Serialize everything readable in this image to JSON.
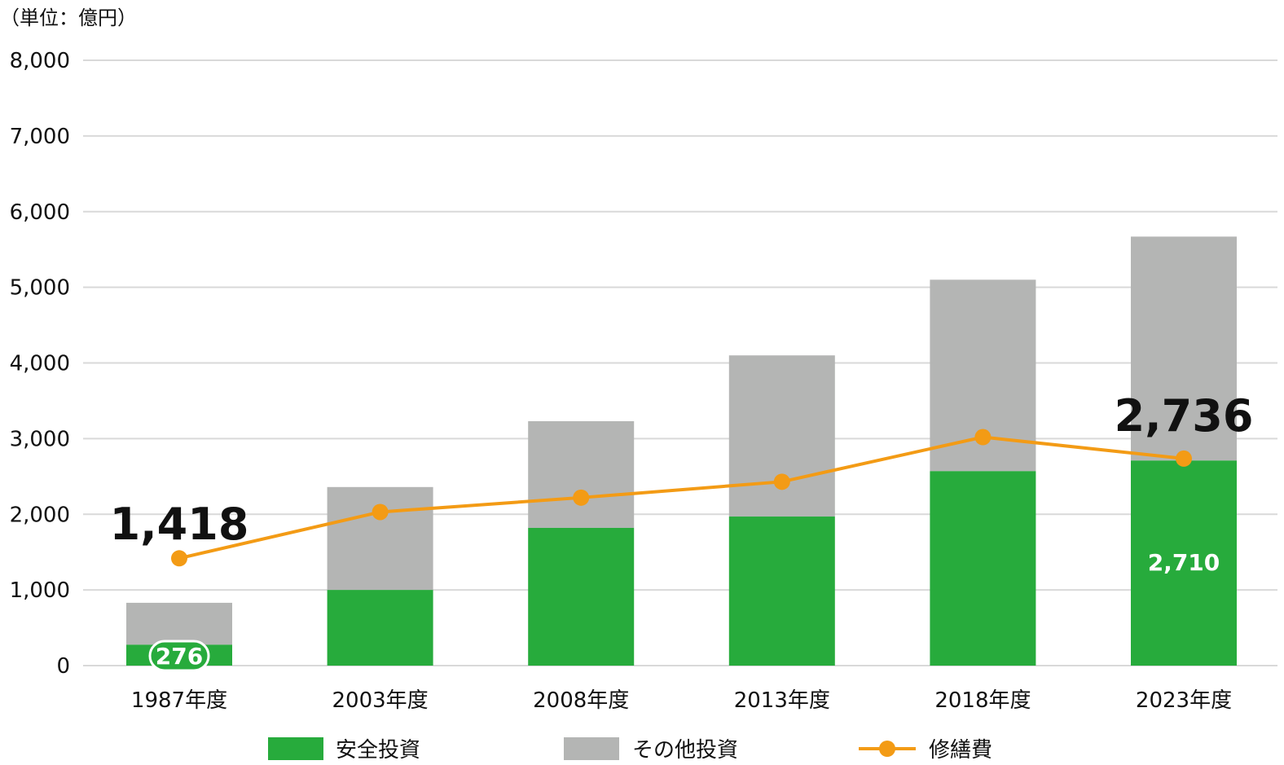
{
  "chart_data": {
    "type": "bar",
    "stacked": true,
    "unit_label": "（単位：億円）",
    "categories": [
      "1987年度",
      "2003年度",
      "2008年度",
      "2013年度",
      "2018年度",
      "2023年度"
    ],
    "yticks": [
      "0",
      "1,000",
      "2,000",
      "3,000",
      "4,000",
      "5,000",
      "6,000",
      "7,000",
      "8,000"
    ],
    "ylim": [
      0,
      8000
    ],
    "grid": true,
    "series": [
      {
        "name": "安全投資",
        "type": "bar",
        "color": "#27ab3c",
        "values": [
          276,
          1000,
          1820,
          1970,
          2570,
          2710
        ]
      },
      {
        "name": "その他投資",
        "type": "bar",
        "color": "#b4b5b4",
        "values": [
          554,
          1360,
          1410,
          2130,
          2530,
          2960
        ]
      },
      {
        "name": "修繕費",
        "type": "line",
        "color": "#f39b15",
        "values": [
          1418,
          2030,
          2220,
          2430,
          3020,
          2736
        ]
      }
    ],
    "annotations": {
      "line_first": "1,418",
      "line_last": "2,736",
      "bar_first": "276",
      "bar_last": "2,710"
    },
    "legend_position": "bottom"
  }
}
